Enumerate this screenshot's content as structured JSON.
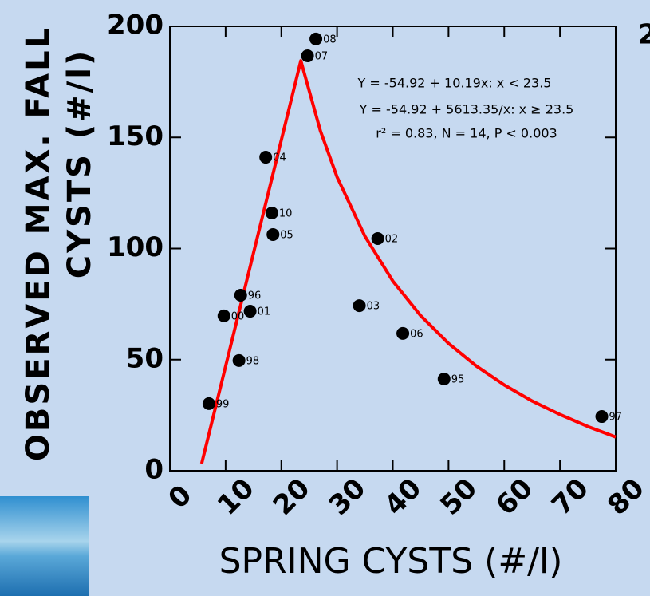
{
  "chart_data": {
    "type": "scatter",
    "x_label": "SPRING CYSTS (#/l)",
    "y_label_lines": [
      "OBSERVED MAX. FALL",
      "CYSTS (#/l)"
    ],
    "edge_text": "2",
    "x": [
      26.2,
      24.7,
      17.2,
      18.3,
      18.5,
      37.3,
      12.7,
      14.4,
      9.7,
      34.0,
      41.8,
      12.4,
      49.2,
      7.0,
      77.5
    ],
    "values": [
      194.3,
      186.7,
      141.1,
      116,
      106.3,
      104.5,
      79,
      71.8,
      69.7,
      74.3,
      61.8,
      49.6,
      41.3,
      30.2,
      24.4
    ],
    "point_labels": [
      "08",
      "07",
      "04",
      "10",
      "05",
      "02",
      "96",
      "01",
      "00",
      "03",
      "06",
      "98",
      "95",
      "99",
      "97"
    ],
    "color": "#000000",
    "fit": {
      "color": "#ff0000",
      "x": [
        5.7,
        23.5,
        27,
        30,
        35,
        40,
        45,
        50,
        55,
        60,
        65,
        70,
        75,
        80
      ],
      "values": [
        3.2,
        184.5,
        153.0,
        132.2,
        105.5,
        85.4,
        69.8,
        57.3,
        47.1,
        38.6,
        31.4,
        25.3,
        19.9,
        15.2
      ]
    },
    "annotations": [
      "Y = -54.92 + 10.19x: x < 23.5",
      "Y = -54.92 + 5613.35/x: x ≥ 23.5",
      "r² = 0.83, N = 14, P < 0.003"
    ],
    "xlim": [
      0,
      80
    ],
    "xticks": [
      0,
      10,
      20,
      30,
      40,
      50,
      60,
      70,
      80
    ],
    "ylim": [
      0,
      200
    ],
    "yticks": [
      0,
      50,
      100,
      150,
      200
    ]
  }
}
